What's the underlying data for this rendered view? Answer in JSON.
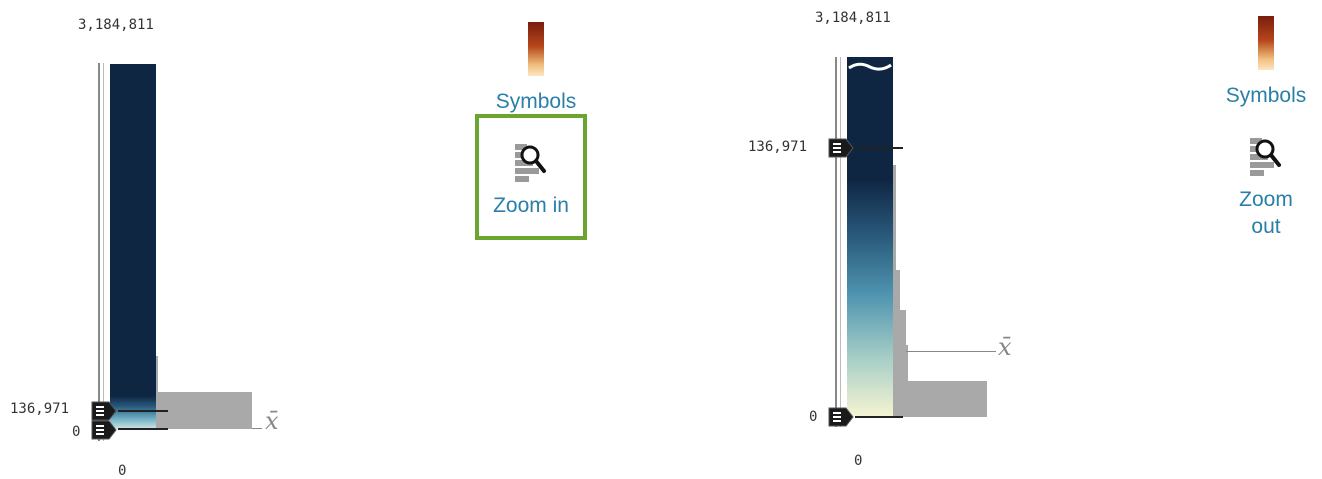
{
  "left_panel": {
    "max_label": "3,184,811",
    "break_label": "136,971",
    "min_label": "0",
    "axis_bottom_label": "0",
    "mean_symbol": "x̄"
  },
  "left_tools": {
    "symbols_label": "Symbols",
    "zoom_label": "Zoom in",
    "zoom_selected": true
  },
  "right_panel": {
    "max_label": "3,184,811",
    "break_label": "136,971",
    "min_label": "0",
    "axis_bottom_label": "0",
    "mean_symbol": "x̄"
  },
  "right_tools": {
    "symbols_label": "Symbols",
    "zoom_label": "Zoom out"
  },
  "colors": {
    "ramp_dark": "#0f2643",
    "ramp_mid": "#4f94b0",
    "ramp_light": "#f6f4d2",
    "histogram": "#a9a9a9",
    "selection": "#6aa62f",
    "link_text": "#2a7fa8"
  },
  "icons": {
    "handle": "slider-handle-icon",
    "zoom": "magnifier-icon",
    "symbols": "color-ramp-icon"
  }
}
